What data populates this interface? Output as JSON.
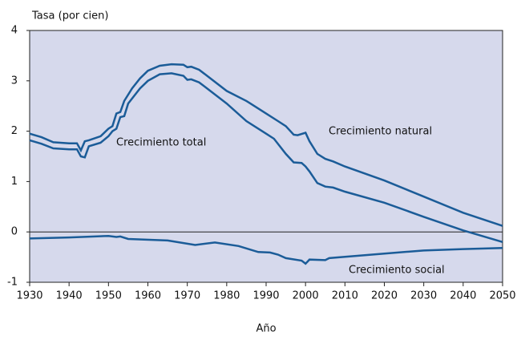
{
  "chart_data": {
    "type": "line",
    "ylabel": "Tasa (por cien)",
    "xlabel": "Año",
    "xlim": [
      1930,
      2050
    ],
    "xticks": [
      1930,
      1940,
      1950,
      1960,
      1970,
      1980,
      1990,
      2000,
      2010,
      2020,
      2030,
      2040,
      2050
    ],
    "ylim": [
      -1,
      4
    ],
    "yticks": [
      -1,
      0,
      1,
      2,
      3,
      4
    ],
    "series": [
      {
        "name": "Crecimiento natural",
        "color": "#1b5c98",
        "x": [
          1930,
          1933,
          1936,
          1940,
          1942,
          1943,
          1944,
          1945,
          1948,
          1950,
          1951,
          1952,
          1953,
          1954,
          1956,
          1958,
          1960,
          1963,
          1966,
          1969,
          1970,
          1971,
          1973,
          1975,
          1980,
          1985,
          1988,
          1990,
          1993,
          1995,
          1997,
          1998,
          2000,
          2001,
          2003,
          2005,
          2007,
          2010,
          2020,
          2030,
          2040,
          2050
        ],
        "values": [
          1.95,
          1.88,
          1.78,
          1.76,
          1.76,
          1.62,
          1.8,
          1.82,
          1.9,
          2.05,
          2.1,
          2.35,
          2.38,
          2.6,
          2.85,
          3.05,
          3.2,
          3.3,
          3.33,
          3.32,
          3.27,
          3.28,
          3.22,
          3.1,
          2.8,
          2.6,
          2.45,
          2.35,
          2.2,
          2.1,
          1.93,
          1.92,
          1.97,
          1.8,
          1.55,
          1.45,
          1.4,
          1.3,
          1.02,
          0.7,
          0.38,
          0.12
        ]
      },
      {
        "name": "Crecimiento total",
        "color": "#1b5c98",
        "x": [
          1930,
          1933,
          1936,
          1940,
          1942,
          1943,
          1944,
          1945,
          1948,
          1950,
          1951,
          1952,
          1953,
          1954,
          1955,
          1958,
          1960,
          1963,
          1966,
          1969,
          1970,
          1971,
          1973,
          1975,
          1980,
          1985,
          1990,
          1992,
          1995,
          1997,
          1999,
          2000,
          2001,
          2003,
          2005,
          2007,
          2010,
          2020,
          2030,
          2040,
          2050
        ],
        "values": [
          1.82,
          1.75,
          1.66,
          1.64,
          1.64,
          1.5,
          1.48,
          1.7,
          1.77,
          1.9,
          2.0,
          2.05,
          2.28,
          2.3,
          2.55,
          2.85,
          3.0,
          3.13,
          3.15,
          3.1,
          3.02,
          3.03,
          2.97,
          2.85,
          2.55,
          2.2,
          1.95,
          1.85,
          1.55,
          1.38,
          1.37,
          1.3,
          1.2,
          0.97,
          0.9,
          0.88,
          0.8,
          0.58,
          0.3,
          0.03,
          -0.2
        ]
      },
      {
        "name": "Crecimiento social",
        "color": "#1b5c98",
        "x": [
          1930,
          1940,
          1950,
          1952,
          1953,
          1955,
          1965,
          1972,
          1977,
          1983,
          1988,
          1991,
          1993,
          1995,
          1999,
          2000,
          2001,
          2005,
          2006,
          2020,
          2030,
          2040,
          2050
        ],
        "values": [
          -0.13,
          -0.11,
          -0.08,
          -0.1,
          -0.09,
          -0.14,
          -0.17,
          -0.26,
          -0.21,
          -0.28,
          -0.4,
          -0.41,
          -0.45,
          -0.52,
          -0.57,
          -0.63,
          -0.55,
          -0.56,
          -0.52,
          -0.43,
          -0.37,
          -0.34,
          -0.32
        ]
      }
    ]
  }
}
